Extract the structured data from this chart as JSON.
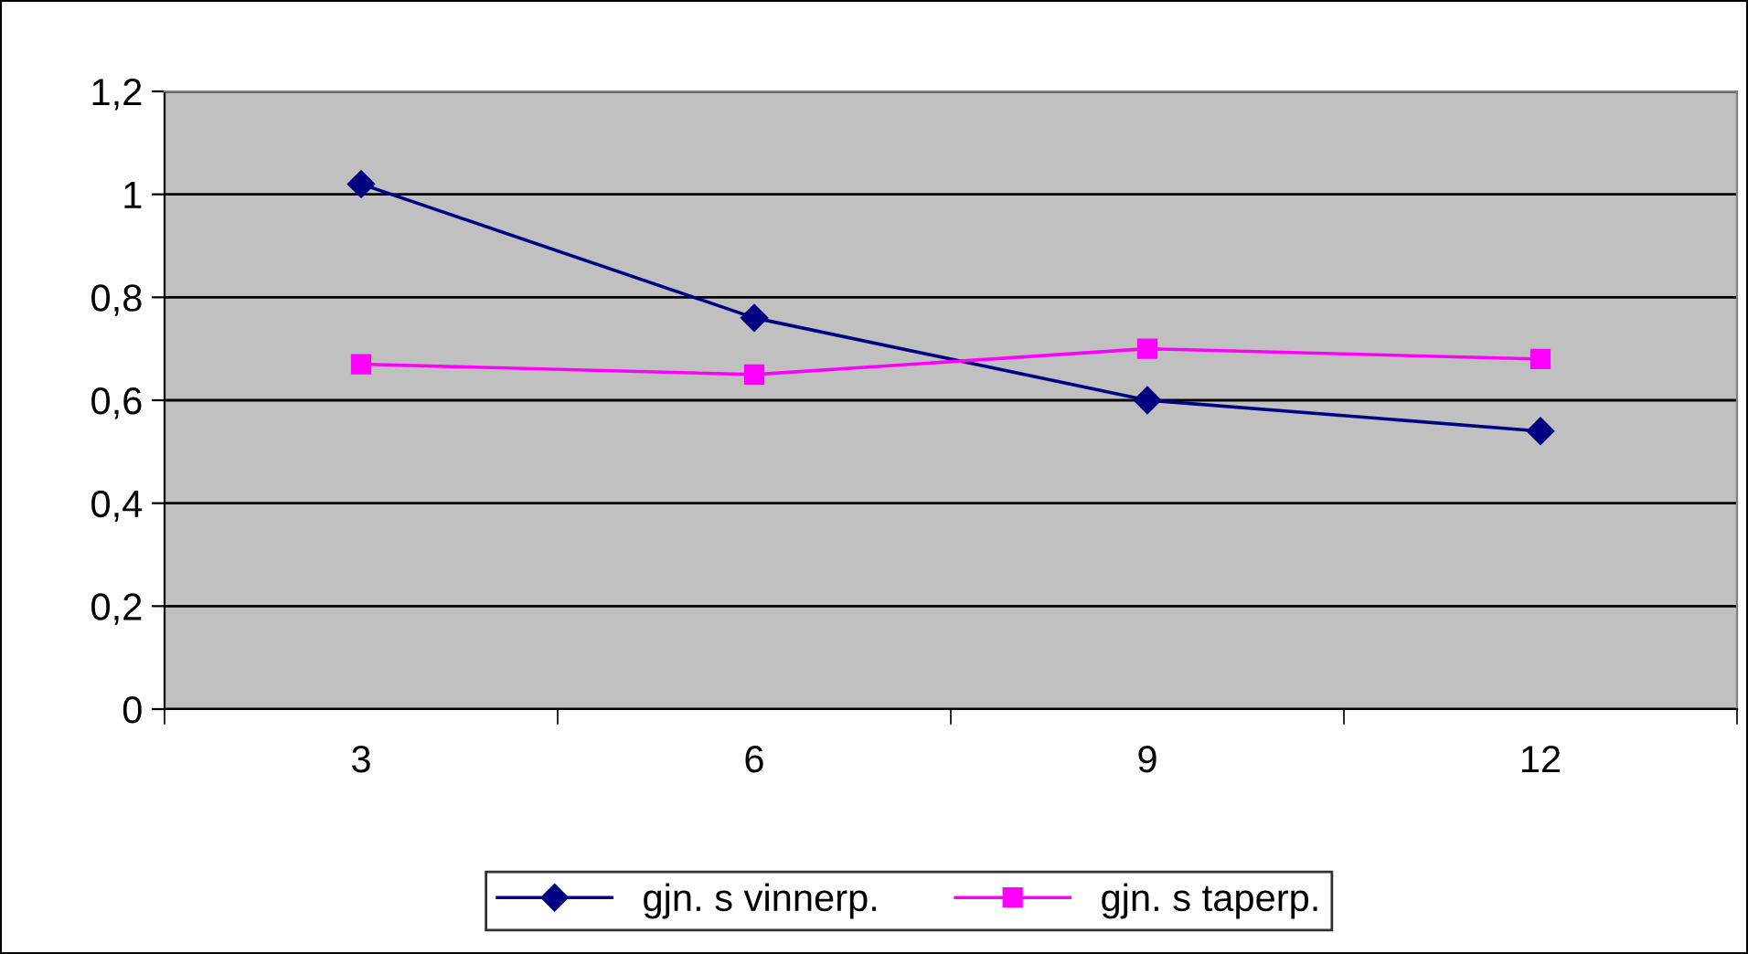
{
  "chart_data": {
    "type": "line",
    "categories": [
      "3",
      "6",
      "9",
      "12"
    ],
    "series": [
      {
        "name": "gjn. s vinnerp.",
        "color": "#000080",
        "values": [
          1.02,
          0.76,
          0.6,
          0.54
        ],
        "marker": "diamond"
      },
      {
        "name": "gjn. s taperp.",
        "color": "#ff00ff",
        "values": [
          0.67,
          0.65,
          0.7,
          0.68
        ],
        "marker": "square"
      }
    ],
    "ylim": [
      0,
      1.2
    ],
    "yticks": [
      0,
      {
        "value": 0.2,
        "label": "0,2"
      },
      {
        "value": 0.4,
        "label": "0,4"
      },
      {
        "value": 0.6,
        "label": "0,6"
      },
      {
        "value": 0.8,
        "label": "0,8"
      },
      1,
      {
        "value": 1.2,
        "label": "1,2"
      }
    ],
    "grid": "y",
    "legend": "bottom",
    "line_style": "solid"
  }
}
